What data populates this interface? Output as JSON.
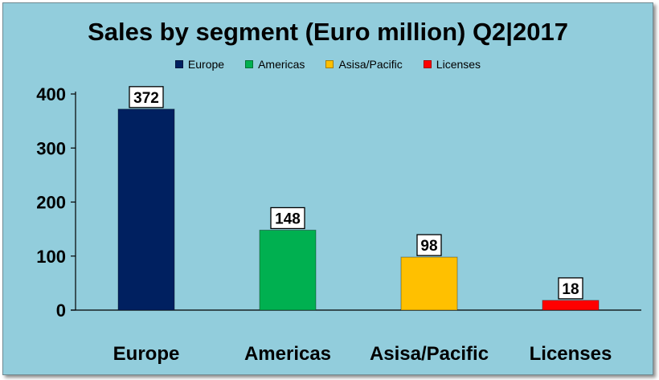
{
  "chart_data": {
    "type": "bar",
    "title": "Sales  by segment (Euro million) Q2|2017",
    "categories": [
      "Europe",
      "Americas",
      "Asisa/Pacific",
      "Licenses"
    ],
    "series": [
      {
        "name": "Europe",
        "category": "Europe",
        "value": 372,
        "color": "#002060"
      },
      {
        "name": "Americas",
        "category": "Americas",
        "value": 148,
        "color": "#00b050"
      },
      {
        "name": "Asisa/Pacific",
        "category": "Asisa/Pacific",
        "value": 98,
        "color": "#ffc000"
      },
      {
        "name": "Licenses",
        "category": "Licenses",
        "value": 18,
        "color": "#ff0000"
      }
    ],
    "values": [
      372,
      148,
      98,
      18
    ],
    "ylim": [
      0,
      400
    ],
    "yticks": [
      0,
      100,
      200,
      300,
      400
    ],
    "xlabel": "",
    "ylabel": "",
    "grid": false,
    "legend": "top-center",
    "background_color": "#92cddc"
  }
}
